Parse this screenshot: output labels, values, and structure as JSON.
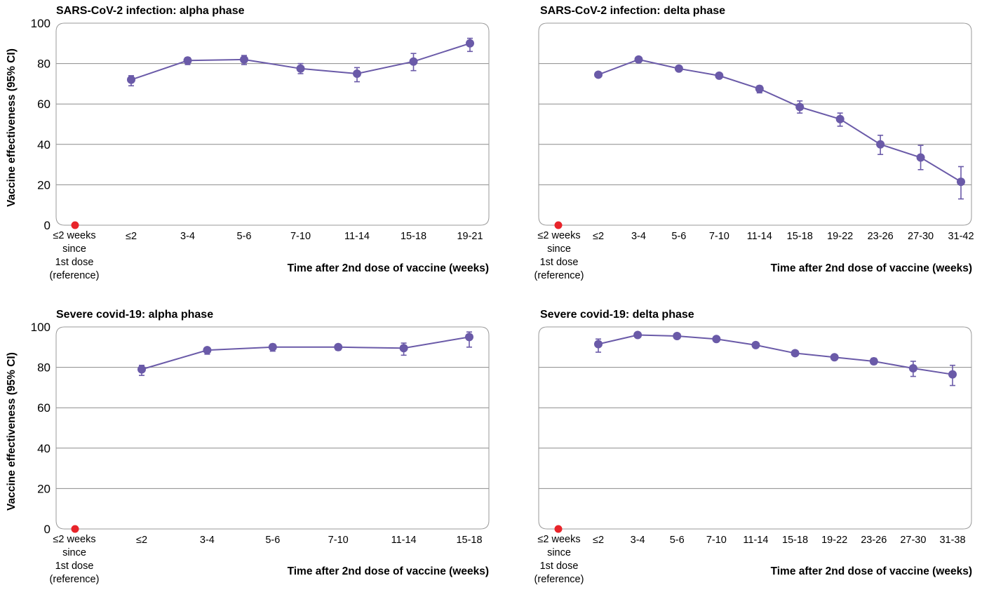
{
  "figure": {
    "ylabel": "Vaccine effectiveness (95% CI)",
    "xlabel": "Time after 2nd dose of vaccine (weeks)",
    "reference_label": [
      "≤2 weeks",
      "since",
      "1st dose",
      "(reference)"
    ]
  },
  "colors": {
    "series": "#6a5aa8",
    "reference": "#e8242a",
    "frame": "#9a9a9a",
    "grid": "#8c8c8c"
  },
  "chart_data": [
    {
      "type": "line",
      "title": "SARS-CoV-2 infection: alpha phase",
      "xlabel": "Time after 2nd dose of vaccine (weeks)",
      "ylabel": "Vaccine effectiveness (95% CI)",
      "ylim": [
        0,
        100
      ],
      "yticks": [
        0,
        20,
        40,
        60,
        80,
        100
      ],
      "grid": true,
      "reference": {
        "label": "≤2 weeks since 1st dose (reference)",
        "value": 0
      },
      "categories": [
        "≤2",
        "3-4",
        "5-6",
        "7-10",
        "11-14",
        "15-18",
        "19-21"
      ],
      "values": [
        72,
        81.5,
        82,
        77.5,
        75,
        81,
        90
      ],
      "ci_low": [
        69,
        79.5,
        79.5,
        75,
        71,
        76.5,
        86
      ],
      "ci_high": [
        74,
        83,
        84,
        80,
        78,
        85,
        92.5
      ]
    },
    {
      "type": "line",
      "title": "SARS-CoV-2 infection: delta phase",
      "xlabel": "Time after 2nd dose of vaccine (weeks)",
      "ylim": [
        0,
        100
      ],
      "yticks": [
        0,
        20,
        40,
        60,
        80,
        100
      ],
      "grid": true,
      "reference": {
        "label": "≤2 weeks since 1st dose (reference)",
        "value": 0
      },
      "categories": [
        "≤2",
        "3-4",
        "5-6",
        "7-10",
        "11-14",
        "15-18",
        "19-22",
        "23-26",
        "27-30",
        "31-42"
      ],
      "values": [
        74.5,
        82,
        77.5,
        74,
        67.5,
        58.5,
        52.5,
        40,
        33.5,
        21.5
      ],
      "ci_low": [
        73.5,
        81,
        76.5,
        73,
        65.5,
        55.5,
        49,
        35,
        27.5,
        13
      ],
      "ci_high": [
        75.5,
        83,
        78.5,
        75,
        69,
        61.5,
        55.5,
        44.5,
        39.5,
        29
      ]
    },
    {
      "type": "line",
      "title": "Severe covid-19: alpha phase",
      "xlabel": "Time after 2nd dose of vaccine (weeks)",
      "ylabel": "Vaccine effectiveness (95% CI)",
      "ylim": [
        0,
        100
      ],
      "yticks": [
        0,
        20,
        40,
        60,
        80,
        100
      ],
      "grid": true,
      "reference": {
        "label": "≤2 weeks since 1st dose (reference)",
        "value": 0
      },
      "categories": [
        "≤2",
        "3-4",
        "5-6",
        "7-10",
        "11-14",
        "15-18"
      ],
      "values": [
        79,
        88.5,
        90,
        90,
        89.5,
        95
      ],
      "ci_low": [
        76,
        86.5,
        88,
        88.5,
        86,
        90
      ],
      "ci_high": [
        81,
        89.5,
        91.5,
        91,
        92,
        97.5
      ]
    },
    {
      "type": "line",
      "title": "Severe covid-19: delta phase",
      "xlabel": "Time after 2nd dose of vaccine (weeks)",
      "ylim": [
        0,
        100
      ],
      "yticks": [
        0,
        20,
        40,
        60,
        80,
        100
      ],
      "grid": true,
      "reference": {
        "label": "≤2 weeks since 1st dose (reference)",
        "value": 0
      },
      "categories": [
        "≤2",
        "3-4",
        "5-6",
        "7-10",
        "11-14",
        "15-18",
        "19-22",
        "23-26",
        "27-30",
        "31-38"
      ],
      "values": [
        91.5,
        96,
        95.5,
        94,
        91,
        87,
        85,
        83,
        79.5,
        76.5
      ],
      "ci_low": [
        87.5,
        95.5,
        95,
        93,
        90.5,
        86,
        84,
        81.5,
        75.5,
        71
      ],
      "ci_high": [
        94,
        97,
        96.5,
        95,
        92,
        88,
        86,
        84.5,
        83,
        81
      ]
    }
  ]
}
